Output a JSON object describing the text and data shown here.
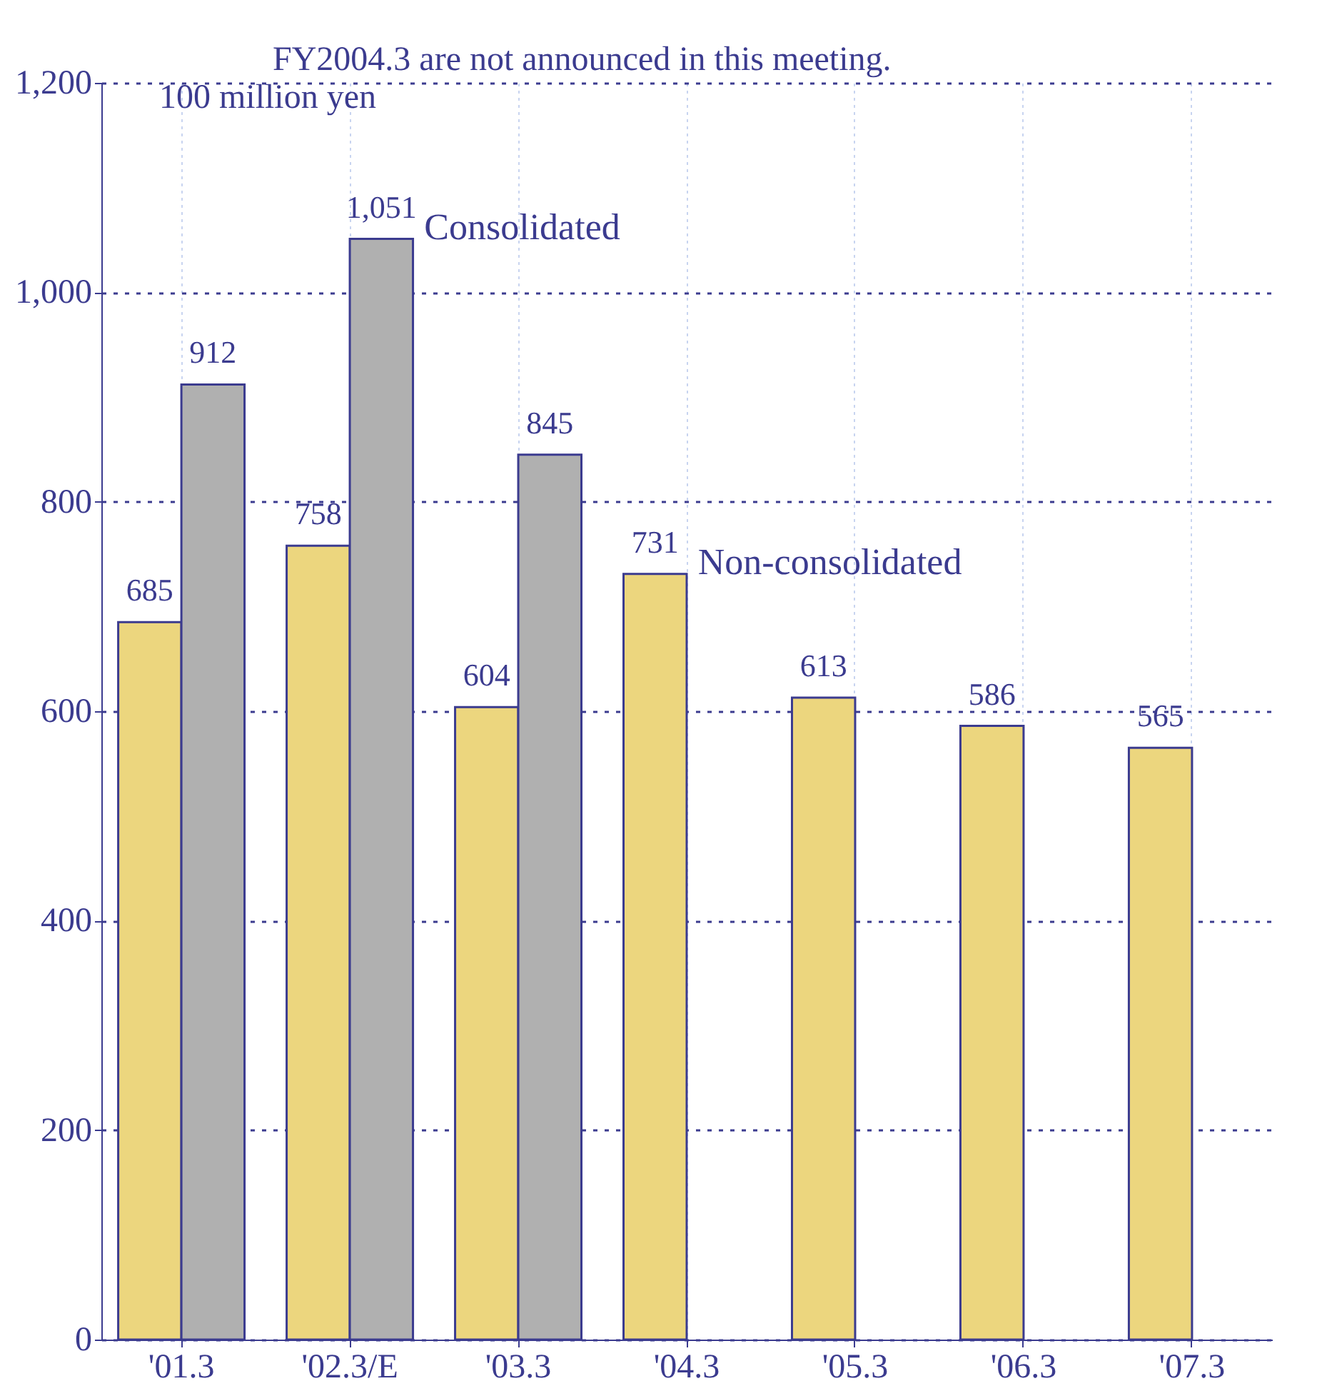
{
  "chart_data": {
    "type": "bar",
    "categories": [
      "'01.3",
      "'02.3/E",
      "'03.3",
      "'04.3",
      "'05.3",
      "'06.3",
      "'07.3"
    ],
    "series": [
      {
        "name": "Non-consolidated",
        "color": "#ecd67e",
        "values": [
          685,
          758,
          604,
          731,
          613,
          586,
          565
        ],
        "value_labels": [
          "685",
          "758",
          "604",
          "731",
          "613",
          "586",
          "565"
        ]
      },
      {
        "name": "Consolidated",
        "color": "#b0b0b0",
        "values": [
          912,
          1051,
          845,
          null,
          null,
          null,
          null
        ],
        "value_labels": [
          "912",
          "1,051",
          "845",
          null,
          null,
          null,
          null
        ]
      }
    ],
    "ylabel": "100 million yen",
    "ylim": [
      0,
      1200
    ],
    "yticks": [
      0,
      200,
      400,
      600,
      800,
      {
        "value": 1000,
        "label": "1,000"
      },
      {
        "value": 1200,
        "label": "1,200"
      }
    ],
    "grid": true,
    "legend": false,
    "annotations": [
      "FY2004.3 are not announced in this meeting."
    ]
  }
}
